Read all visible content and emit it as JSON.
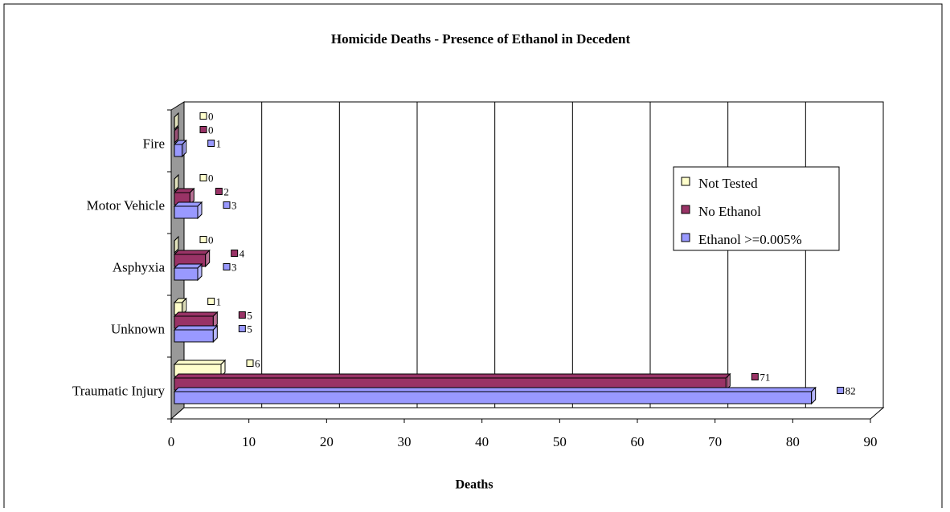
{
  "chart_data": {
    "type": "bar",
    "orientation": "horizontal",
    "title": "Homicide Deaths - Presence of Ethanol in Decedent",
    "xlabel": "Deaths",
    "categories": [
      "Fire",
      "Motor Vehicle",
      "Asphyxia",
      "Unknown",
      "Traumatic Injury"
    ],
    "series": [
      {
        "name": "Not Tested",
        "color": "#FFFFCC",
        "values": [
          0,
          0,
          0,
          1,
          6
        ]
      },
      {
        "name": "No Ethanol",
        "color": "#993366",
        "values": [
          0,
          2,
          4,
          5,
          71
        ]
      },
      {
        "name": "Ethanol >=0.005%",
        "color": "#9999FF",
        "values": [
          1,
          3,
          3,
          5,
          82
        ]
      }
    ],
    "xlim": [
      0,
      90
    ],
    "xticks": [
      0,
      10,
      20,
      30,
      40,
      50,
      60,
      70,
      80,
      90
    ],
    "grid": true,
    "legend": "right"
  }
}
